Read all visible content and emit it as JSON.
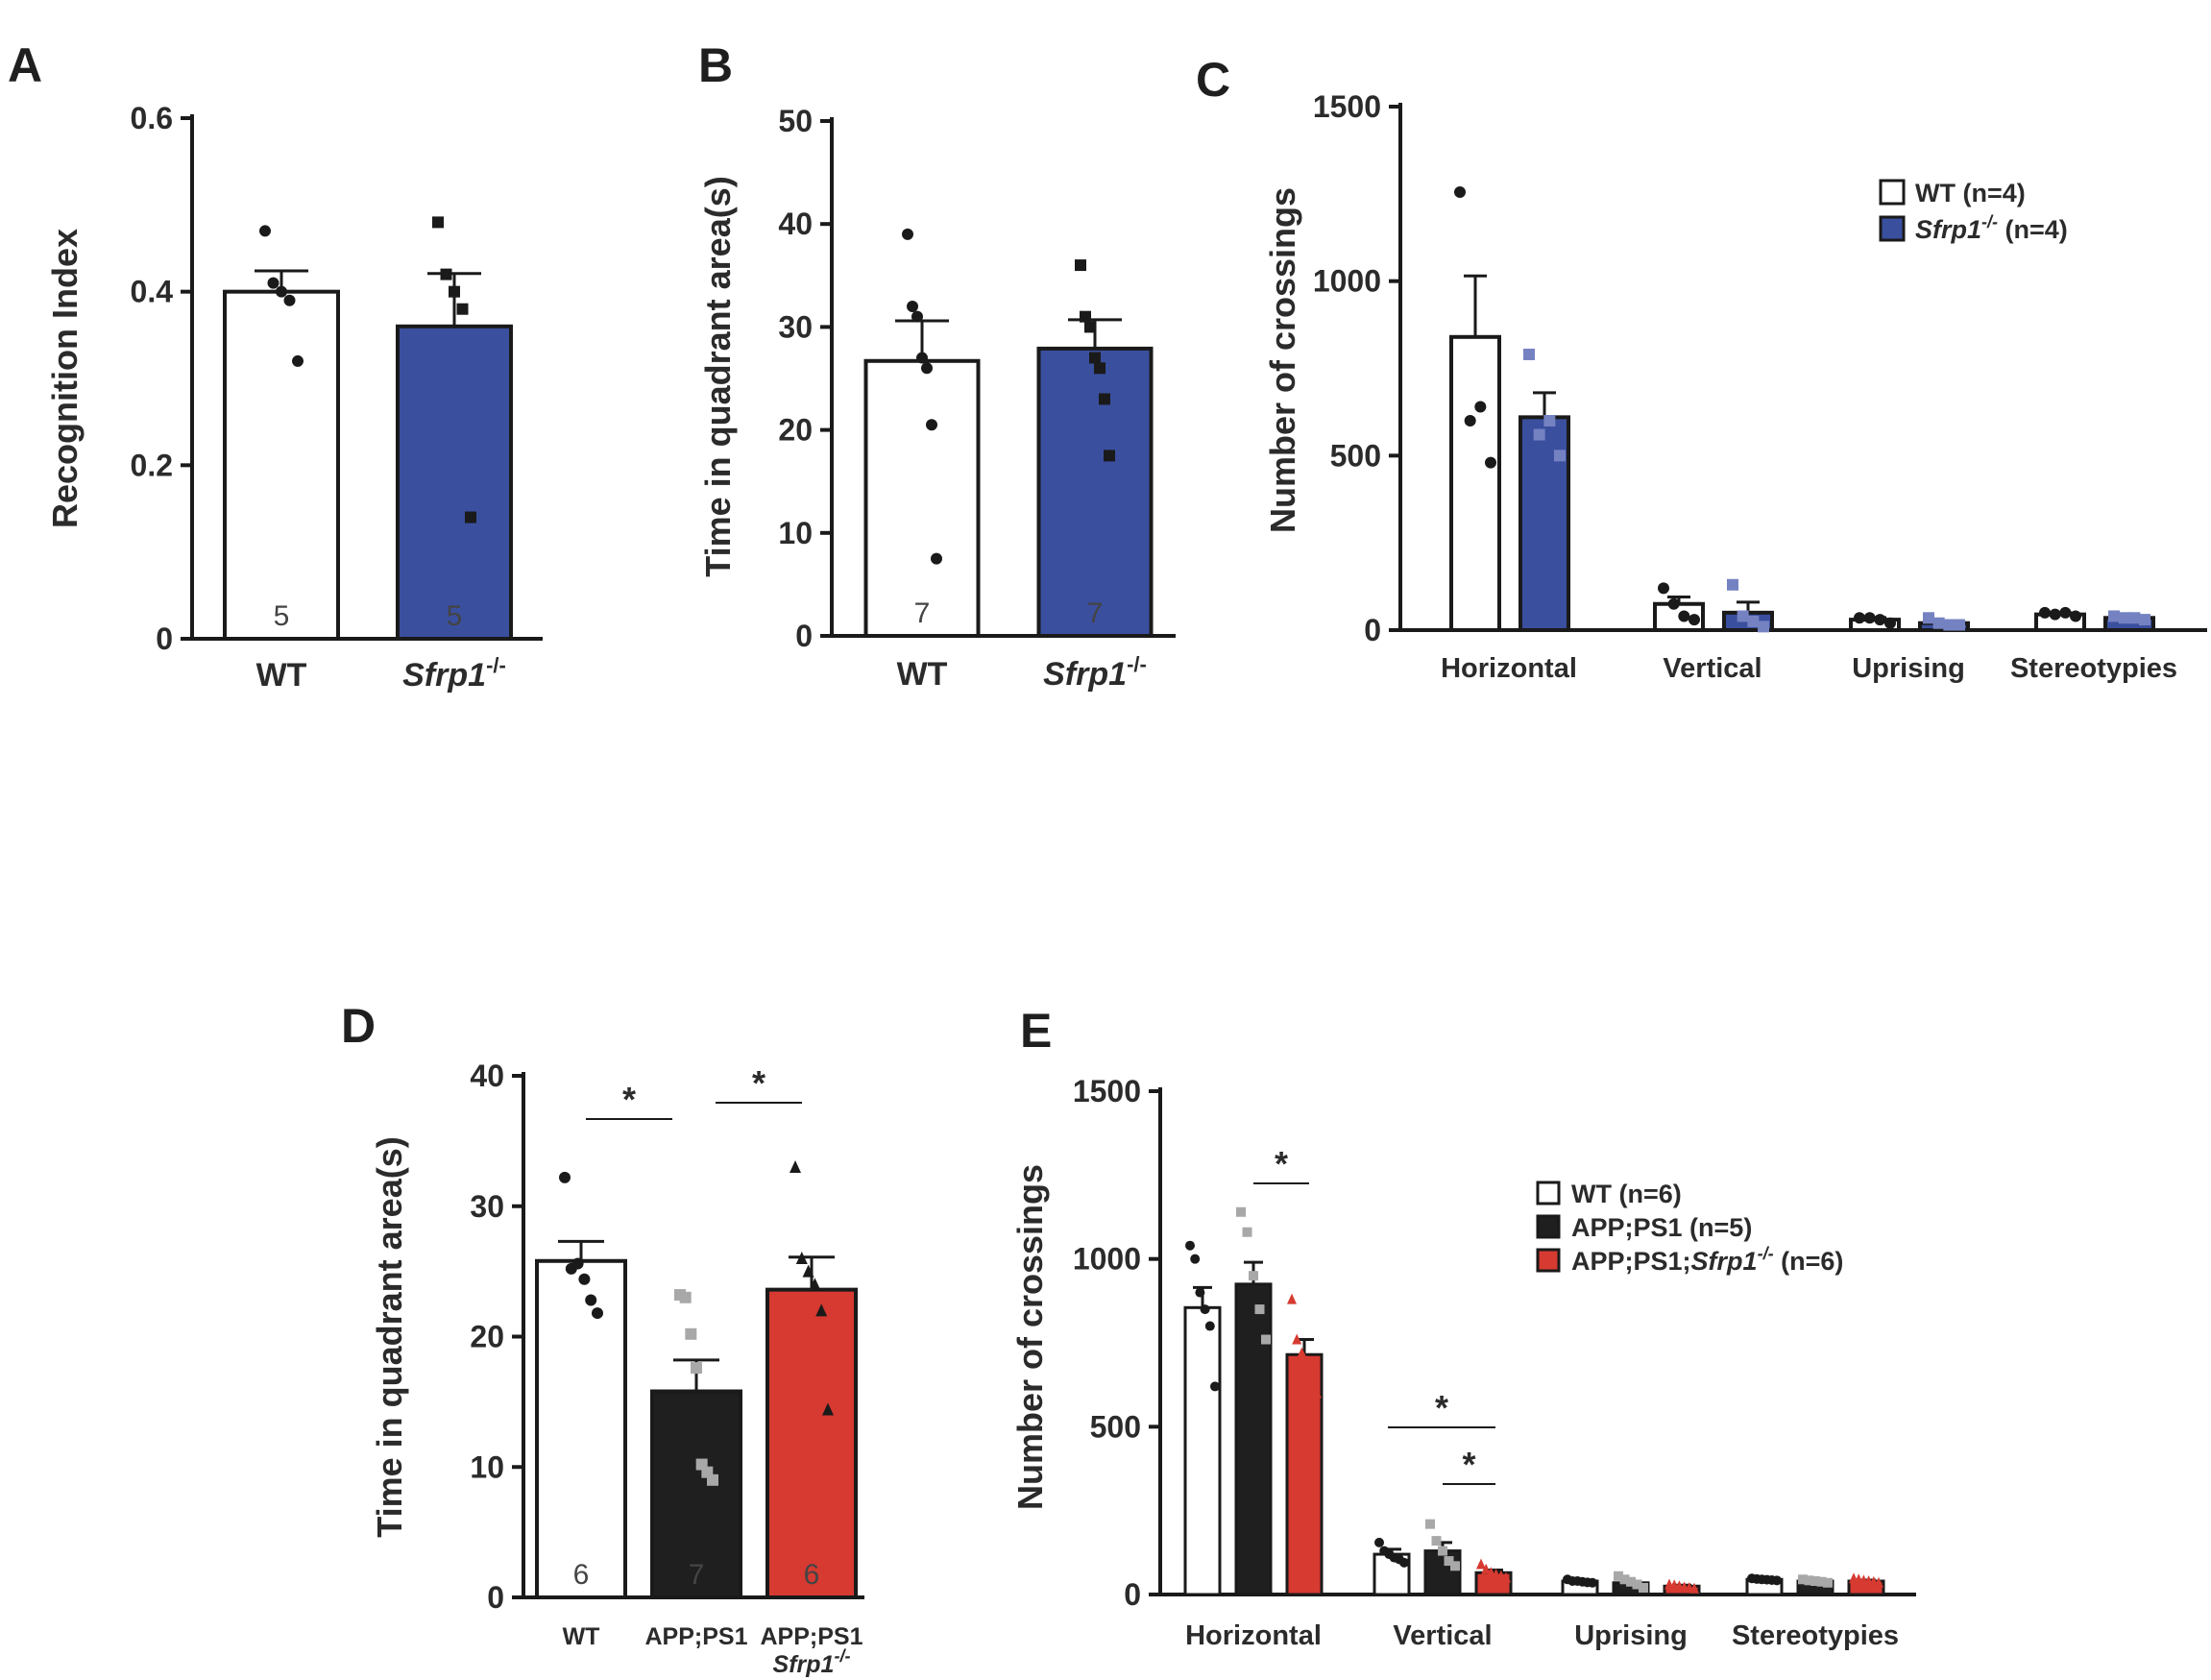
{
  "panels": {
    "A": "A",
    "B": "B",
    "C": "C",
    "D": "D",
    "E": "E"
  },
  "colors": {
    "wt": "#ffffff",
    "sfrp1": "#3a4f9e",
    "app": "#1f1f1f",
    "app_sfrp1": "#d63a31",
    "outline": "#1a1a1a",
    "grey_points": "#a8a8a8",
    "sfrp_points_C": "#7582c2"
  },
  "chart_data": [
    {
      "panel": "A",
      "type": "bar",
      "ylabel": "Recognition Index",
      "ylim": [
        0,
        0.6
      ],
      "yticks": [
        0,
        0.2,
        0.4,
        0.6
      ],
      "ytick_labels": [
        "0",
        "0.2",
        "0.4",
        "0.6"
      ],
      "categories": [
        {
          "name": "WT",
          "sup": ""
        },
        {
          "name": "Sfrp1",
          "sup": "-/-"
        }
      ],
      "values": [
        0.4,
        0.36
      ],
      "errors": [
        0.024,
        0.061
      ],
      "n": [
        "5",
        "5"
      ],
      "points": [
        [
          0.47,
          0.41,
          0.4,
          0.39,
          0.32
        ],
        [
          0.48,
          0.42,
          0.4,
          0.38,
          0.14
        ]
      ]
    },
    {
      "panel": "B",
      "type": "bar",
      "ylabel": "Time in quadrant area(s)",
      "ylim": [
        0,
        50
      ],
      "yticks": [
        0,
        10,
        20,
        30,
        40,
        50
      ],
      "ytick_labels": [
        "0",
        "10",
        "20",
        "30",
        "40",
        "50"
      ],
      "categories": [
        {
          "name": "WT",
          "sup": ""
        },
        {
          "name": "Sfrp1",
          "sup": "-/-"
        }
      ],
      "values": [
        26.7,
        27.9
      ],
      "errors": [
        3.9,
        2.8
      ],
      "n": [
        "7",
        "7"
      ],
      "points": [
        [
          39,
          32,
          31,
          27,
          26,
          20.5,
          7.5
        ],
        [
          36,
          31,
          30,
          27,
          26,
          23,
          17.5
        ]
      ]
    },
    {
      "panel": "C",
      "type": "bar",
      "ylabel": "Number of crossings",
      "ylim": [
        0,
        1500
      ],
      "yticks": [
        0,
        500,
        1000,
        1500
      ],
      "ytick_labels": [
        "0",
        "500",
        "1000",
        "1500"
      ],
      "categories": [
        "Horizontal",
        "Vertical",
        "Uprising",
        "Stereotypies"
      ],
      "series": [
        {
          "name": "WT",
          "sup": "",
          "legend_suffix": " (n=4)",
          "values": [
            840,
            75,
            30,
            45
          ],
          "errors": [
            175,
            20,
            6,
            5
          ],
          "points": [
            [
              1255,
              600,
              640,
              480
            ],
            [
              120,
              75,
              40,
              30
            ],
            [
              35,
              35,
              30,
              20
            ],
            [
              50,
              45,
              50,
              40
            ]
          ]
        },
        {
          "name": "Sfrp1",
          "sup": "-/-",
          "legend_suffix": " (n=4)",
          "values": [
            610,
            50,
            20,
            35
          ],
          "errors": [
            70,
            30,
            5,
            4
          ],
          "points": [
            [
              790,
              560,
              600,
              500
            ],
            [
              130,
              40,
              25,
              10
            ],
            [
              35,
              20,
              15,
              15
            ],
            [
              40,
              35,
              35,
              30
            ]
          ]
        }
      ]
    },
    {
      "panel": "D",
      "type": "bar",
      "ylabel": "Time in quadrant area(s)",
      "ylim": [
        0,
        40
      ],
      "yticks": [
        0,
        10,
        20,
        30,
        40
      ],
      "ytick_labels": [
        "0",
        "10",
        "20",
        "30",
        "40"
      ],
      "categories": [
        {
          "line1": "WT",
          "line2": "",
          "sup": ""
        },
        {
          "line1": "APP;PS1",
          "line2": "",
          "sup": ""
        },
        {
          "line1": "APP;PS1",
          "line2": "Sfrp1",
          "sup": "-/-"
        }
      ],
      "values": [
        25.8,
        15.8,
        23.6
      ],
      "errors": [
        1.5,
        2.4,
        2.5
      ],
      "n": [
        "6",
        "7",
        "6"
      ],
      "points": [
        [
          32.2,
          25.2,
          25.6,
          24.4,
          22.8,
          21.8
        ],
        [
          23.2,
          23.0,
          20.2,
          17.6,
          10.2,
          9.6,
          9.0
        ],
        [
          33.0,
          26.0,
          25.0,
          24.0,
          22.0,
          14.4
        ]
      ],
      "significance": [
        {
          "groups": [
            0,
            1
          ],
          "label": "*"
        },
        {
          "groups": [
            1,
            2
          ],
          "label": "*"
        }
      ]
    },
    {
      "panel": "E",
      "type": "bar",
      "ylabel": "Number of crossings",
      "ylim": [
        0,
        1500
      ],
      "yticks": [
        0,
        500,
        1000,
        1500
      ],
      "ytick_labels": [
        "0",
        "500",
        "1000",
        "1500"
      ],
      "categories": [
        "Horizontal",
        "Vertical",
        "Uprising",
        "Stereotypies"
      ],
      "series": [
        {
          "name": "WT",
          "sup": "",
          "legend_suffix": " (n=6)",
          "values": [
            855,
            120,
            40,
            45
          ],
          "errors": [
            60,
            15,
            4,
            3
          ],
          "points": [
            [
              1040,
              1000,
              900,
              850,
              800,
              620
            ],
            [
              155,
              130,
              120,
              110,
              105,
              95
            ],
            [
              45,
              40,
              40,
              38,
              36,
              35
            ],
            [
              48,
              46,
              45,
              44,
              43,
              42
            ]
          ]
        },
        {
          "name": "APP;PS1",
          "sup": "",
          "legend_suffix": " (n=5)",
          "values": [
            925,
            130,
            35,
            40
          ],
          "errors": [
            65,
            25,
            5,
            3
          ],
          "points": [
            [
              1140,
              1080,
              950,
              850,
              760
            ],
            [
              210,
              160,
              130,
              100,
              85
            ],
            [
              55,
              45,
              38,
              30,
              20
            ],
            [
              45,
              42,
              40,
              38,
              35
            ]
          ]
        },
        {
          "name": "APP;PS1;Sfrp1",
          "sup": "-/-",
          "legend_suffix": " (n=6)",
          "values": [
            715,
            65,
            25,
            40
          ],
          "errors": [
            45,
            8,
            3,
            3
          ],
          "points": [
            [
              880,
              760,
              720,
              680,
              650,
              600
            ],
            [
              90,
              75,
              65,
              60,
              55,
              50
            ],
            [
              30,
              28,
              25,
              22,
              20,
              18
            ],
            [
              48,
              45,
              42,
              40,
              38,
              35
            ]
          ]
        }
      ],
      "significance": [
        {
          "category": "Horizontal",
          "groups": [
            1,
            2
          ],
          "label": "*"
        },
        {
          "category": "Vertical",
          "groups": [
            0,
            2
          ],
          "label": "*"
        },
        {
          "category": "Vertical",
          "groups": [
            1,
            2
          ],
          "label": "*"
        }
      ]
    }
  ]
}
